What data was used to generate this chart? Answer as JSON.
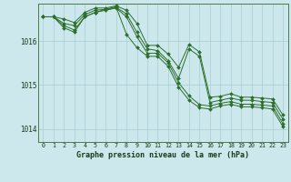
{
  "title": "Graphe pression niveau de la mer (hPa)",
  "bg_color": "#cce8ec",
  "grid_color": "#a8cdd2",
  "line_color": "#2d6e2d",
  "ylim": [
    1013.7,
    1016.85
  ],
  "xlim": [
    -0.5,
    23.5
  ],
  "yticks": [
    1014,
    1015,
    1016
  ],
  "xticks": [
    0,
    1,
    2,
    3,
    4,
    5,
    6,
    7,
    8,
    9,
    10,
    11,
    12,
    13,
    14,
    15,
    16,
    17,
    18,
    19,
    20,
    21,
    22,
    23
  ],
  "series": [
    [
      1016.55,
      1016.55,
      1016.3,
      1016.2,
      1016.55,
      1016.65,
      1016.72,
      1016.78,
      1016.15,
      1015.85,
      1015.65,
      1015.65,
      1015.42,
      1014.95,
      1014.65,
      1014.48,
      1014.45,
      1014.52,
      1014.56,
      1014.5,
      1014.5,
      1014.48,
      1014.45,
      1014.05
    ],
    [
      1016.55,
      1016.55,
      1016.35,
      1016.25,
      1016.55,
      1016.65,
      1016.7,
      1016.75,
      1016.55,
      1016.1,
      1015.72,
      1015.72,
      1015.5,
      1015.05,
      1014.75,
      1014.55,
      1014.52,
      1014.58,
      1014.62,
      1014.56,
      1014.56,
      1014.54,
      1014.52,
      1014.12
    ],
    [
      1016.55,
      1016.55,
      1016.4,
      1016.35,
      1016.6,
      1016.7,
      1016.72,
      1016.76,
      1016.62,
      1016.2,
      1015.82,
      1015.78,
      1015.55,
      1015.15,
      1015.82,
      1015.65,
      1014.6,
      1014.65,
      1014.7,
      1014.65,
      1014.65,
      1014.62,
      1014.6,
      1014.22
    ],
    [
      1016.55,
      1016.55,
      1016.5,
      1016.42,
      1016.65,
      1016.75,
      1016.75,
      1016.8,
      1016.7,
      1016.4,
      1015.9,
      1015.9,
      1015.7,
      1015.4,
      1015.92,
      1015.75,
      1014.72,
      1014.74,
      1014.8,
      1014.72,
      1014.72,
      1014.7,
      1014.68,
      1014.32
    ]
  ]
}
